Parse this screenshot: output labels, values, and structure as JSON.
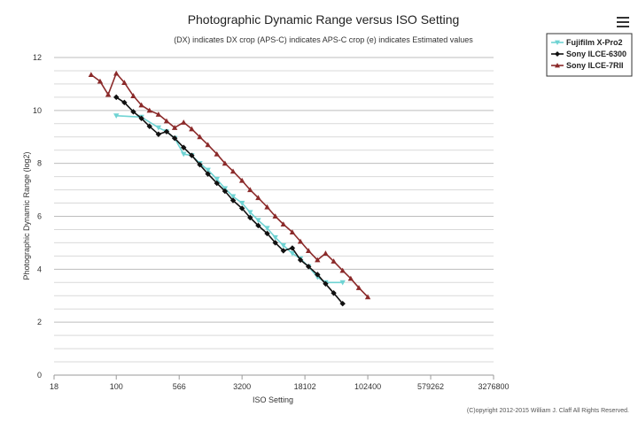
{
  "menu_icon": "hamburger-menu-icon",
  "credit": "(C)opyright 2012-2015 William J. Claff All Rights Reserved.",
  "chart_data": {
    "type": "line",
    "title": "Photographic Dynamic Range versus ISO Setting",
    "subtitle": "(DX) indicates DX crop (APS-C) indicates APS-C crop (e) indicates Estimated values",
    "xlabel": "ISO Setting",
    "ylabel": "Photographic Dynamic Range (log2)",
    "x_scale": "log",
    "x_ticks": [
      18,
      100,
      566,
      3200,
      18102,
      102400,
      579262,
      3276800
    ],
    "x_tick_labels": [
      "18",
      "100",
      "566",
      "3200",
      "18102",
      "102400",
      "579262",
      "3276800"
    ],
    "xlim": [
      18,
      3276800
    ],
    "ylim": [
      0,
      12
    ],
    "y_ticks": [
      0,
      2,
      4,
      6,
      8,
      10,
      12
    ],
    "y_tick_labels": [
      "0",
      "2",
      "4",
      "6",
      "8",
      "10",
      "12"
    ],
    "grid": true,
    "legend_position": "top-right",
    "series": [
      {
        "name": "Fujifilm X-Pro2",
        "color": "#6fd3d3",
        "marker": "triangle-down",
        "points": [
          [
            100,
            9.8
          ],
          [
            200,
            9.75
          ],
          [
            320,
            9.35
          ],
          [
            400,
            9.2
          ],
          [
            500,
            8.95
          ],
          [
            640,
            8.35
          ],
          [
            800,
            8.3
          ],
          [
            1000,
            8.0
          ],
          [
            1250,
            7.75
          ],
          [
            1600,
            7.4
          ],
          [
            2000,
            7.05
          ],
          [
            2500,
            6.75
          ],
          [
            3200,
            6.5
          ],
          [
            4000,
            6.15
          ],
          [
            5000,
            5.85
          ],
          [
            6400,
            5.55
          ],
          [
            8000,
            5.2
          ],
          [
            10000,
            4.9
          ],
          [
            12800,
            4.6
          ],
          [
            16000,
            4.4
          ],
          [
            20000,
            4.1
          ],
          [
            25600,
            3.7
          ],
          [
            32000,
            3.5
          ],
          [
            51200,
            3.5
          ]
        ]
      },
      {
        "name": "Sony ILCE-6300",
        "color": "#111111",
        "marker": "diamond",
        "points": [
          [
            100,
            10.5
          ],
          [
            125,
            10.3
          ],
          [
            160,
            9.95
          ],
          [
            200,
            9.7
          ],
          [
            250,
            9.4
          ],
          [
            320,
            9.1
          ],
          [
            400,
            9.2
          ],
          [
            500,
            8.95
          ],
          [
            640,
            8.6
          ],
          [
            800,
            8.3
          ],
          [
            1000,
            7.95
          ],
          [
            1250,
            7.6
          ],
          [
            1600,
            7.25
          ],
          [
            2000,
            6.95
          ],
          [
            2500,
            6.6
          ],
          [
            3200,
            6.3
          ],
          [
            4000,
            5.95
          ],
          [
            5000,
            5.65
          ],
          [
            6400,
            5.35
          ],
          [
            8000,
            5.0
          ],
          [
            10000,
            4.7
          ],
          [
            12800,
            4.8
          ],
          [
            16000,
            4.35
          ],
          [
            20000,
            4.1
          ],
          [
            25600,
            3.8
          ],
          [
            32000,
            3.45
          ],
          [
            40000,
            3.1
          ],
          [
            51200,
            2.7
          ]
        ]
      },
      {
        "name": "Sony ILCE-7RII",
        "color": "#8b2a2a",
        "marker": "triangle-up",
        "points": [
          [
            50,
            11.35
          ],
          [
            64,
            11.1
          ],
          [
            80,
            10.6
          ],
          [
            100,
            11.4
          ],
          [
            125,
            11.05
          ],
          [
            160,
            10.55
          ],
          [
            200,
            10.2
          ],
          [
            250,
            10.0
          ],
          [
            320,
            9.85
          ],
          [
            400,
            9.6
          ],
          [
            500,
            9.35
          ],
          [
            640,
            9.55
          ],
          [
            800,
            9.3
          ],
          [
            1000,
            9.0
          ],
          [
            1250,
            8.7
          ],
          [
            1600,
            8.35
          ],
          [
            2000,
            8.0
          ],
          [
            2500,
            7.7
          ],
          [
            3200,
            7.35
          ],
          [
            4000,
            7.0
          ],
          [
            5000,
            6.7
          ],
          [
            6400,
            6.35
          ],
          [
            8000,
            6.0
          ],
          [
            10000,
            5.7
          ],
          [
            12800,
            5.4
          ],
          [
            16000,
            5.05
          ],
          [
            20000,
            4.7
          ],
          [
            25600,
            4.35
          ],
          [
            32000,
            4.6
          ],
          [
            40000,
            4.3
          ],
          [
            51200,
            3.95
          ],
          [
            64000,
            3.65
          ],
          [
            80000,
            3.3
          ],
          [
            102400,
            2.95
          ]
        ]
      }
    ]
  }
}
